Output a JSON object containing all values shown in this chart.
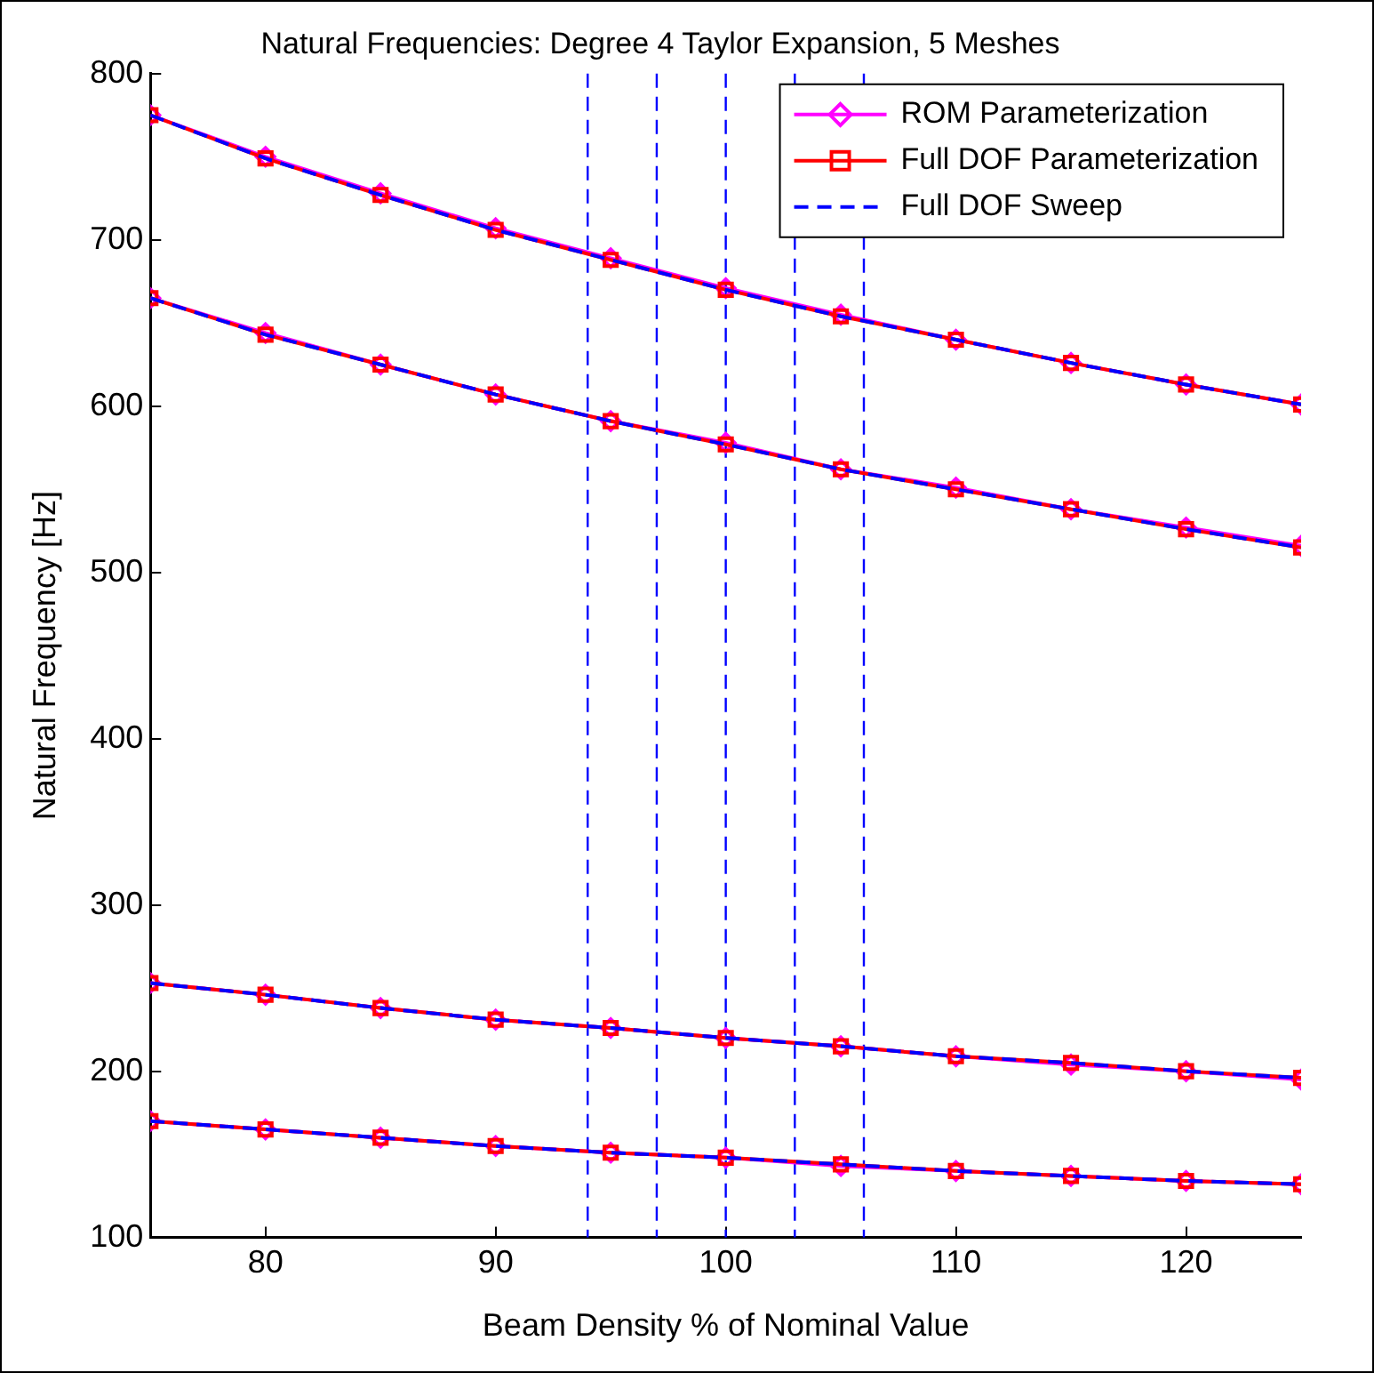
{
  "chart_data": {
    "type": "line",
    "title": "Natural Frequencies: Degree 4 Taylor Expansion, 5 Meshes",
    "xlabel": "Beam Density % of Nominal Value",
    "ylabel": "Natural Frequency [Hz]",
    "x": [
      75,
      80,
      85,
      90,
      95,
      100,
      105,
      110,
      115,
      120,
      125
    ],
    "series": [
      {
        "name": "ROM Parameterization",
        "color": "#ff00ff",
        "marker": "diamond",
        "line_style": "solid",
        "values": [
          775,
          750,
          728,
          707,
          689,
          671,
          655,
          640,
          626,
          613,
          601
        ]
      },
      {
        "color": "#ff00ff",
        "marker": "diamond",
        "line_style": "solid",
        "values": [
          665,
          644,
          625,
          607,
          591,
          578,
          562,
          551,
          538,
          527,
          516
        ]
      },
      {
        "color": "#ff00ff",
        "marker": "diamond",
        "line_style": "solid",
        "values": [
          253,
          246,
          238,
          231,
          226,
          220,
          215,
          209,
          204,
          200,
          195
        ]
      },
      {
        "color": "#ff00ff",
        "marker": "diamond",
        "line_style": "solid",
        "values": [
          170,
          165,
          160,
          155,
          151,
          148,
          143,
          140,
          137,
          134,
          132
        ]
      },
      {
        "name": "Full DOF Parameterization",
        "color": "#ff0000",
        "marker": "square",
        "line_style": "solid",
        "values": [
          775,
          749,
          727,
          706,
          688,
          670,
          654,
          640,
          626,
          613,
          601
        ]
      },
      {
        "color": "#ff0000",
        "marker": "square",
        "line_style": "solid",
        "values": [
          665,
          643,
          625,
          607,
          591,
          577,
          562,
          550,
          538,
          526,
          515
        ]
      },
      {
        "color": "#ff0000",
        "marker": "square",
        "line_style": "solid",
        "values": [
          253,
          246,
          238,
          231,
          226,
          220,
          215,
          209,
          205,
          200,
          196
        ]
      },
      {
        "color": "#ff0000",
        "marker": "square",
        "line_style": "solid",
        "values": [
          170,
          165,
          160,
          155,
          151,
          148,
          144,
          140,
          137,
          134,
          132
        ]
      },
      {
        "name": "Full DOF Sweep",
        "color": "#0000ff",
        "marker": "none",
        "line_style": "dashed",
        "values": [
          775,
          749,
          727,
          706,
          688,
          670,
          654,
          640,
          626,
          613,
          601
        ]
      },
      {
        "color": "#0000ff",
        "marker": "none",
        "line_style": "dashed",
        "values": [
          665,
          643,
          625,
          607,
          591,
          577,
          562,
          550,
          538,
          526,
          515
        ]
      },
      {
        "color": "#0000ff",
        "marker": "none",
        "line_style": "dashed",
        "values": [
          253,
          246,
          238,
          231,
          226,
          220,
          215,
          209,
          205,
          200,
          196
        ]
      },
      {
        "color": "#0000ff",
        "marker": "none",
        "line_style": "dashed",
        "values": [
          170,
          165,
          160,
          155,
          151,
          148,
          144,
          140,
          137,
          134,
          132
        ]
      }
    ],
    "ref_lines": [
      {
        "axis": "x",
        "value": 94,
        "color": "#0000ff",
        "line_style": "dashed"
      },
      {
        "axis": "x",
        "value": 97,
        "color": "#0000ff",
        "line_style": "dashed"
      },
      {
        "axis": "x",
        "value": 100,
        "color": "#0000ff",
        "line_style": "dashed"
      },
      {
        "axis": "x",
        "value": 103,
        "color": "#0000ff",
        "line_style": "dashed"
      },
      {
        "axis": "x",
        "value": 106,
        "color": "#0000ff",
        "line_style": "dashed"
      }
    ],
    "xlim": [
      75,
      125
    ],
    "xticks": [
      80,
      90,
      100,
      110,
      120
    ],
    "ylim": [
      100,
      800
    ],
    "yticks": [
      100,
      200,
      300,
      400,
      500,
      600,
      700,
      800
    ],
    "grid": false,
    "legend": "top right"
  }
}
